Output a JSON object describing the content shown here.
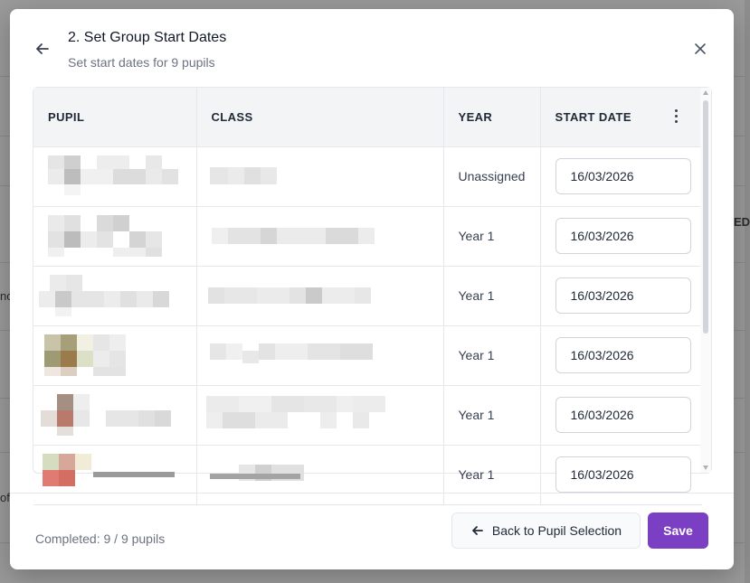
{
  "background": {
    "fragments": [
      "ED",
      "no",
      "of"
    ]
  },
  "modal": {
    "title": "2. Set Group Start Dates",
    "subtitle": "Set start dates for 9 pupils",
    "back_icon": "arrow-left-icon",
    "close_icon": "close-icon"
  },
  "table": {
    "headers": [
      "PUPIL",
      "CLASS",
      "YEAR",
      "START DATE"
    ],
    "rows": [
      {
        "pupil": "",
        "class": "",
        "year": "Unassigned",
        "start_date": "16/03/2026"
      },
      {
        "pupil": "",
        "class": "",
        "year": "Year 1",
        "start_date": "16/03/2026"
      },
      {
        "pupil": "",
        "class": "",
        "year": "Year 1",
        "start_date": "16/03/2026"
      },
      {
        "pupil": "",
        "class": "",
        "year": "Year 1",
        "start_date": "16/03/2026"
      },
      {
        "pupil": "",
        "class": "",
        "year": "Year 1",
        "start_date": "16/03/2026"
      },
      {
        "pupil": "",
        "class": "",
        "year": "Year 1",
        "start_date": "16/03/2026"
      }
    ]
  },
  "footer": {
    "completed": "Completed: 9 / 9 pupils",
    "back_label": "Back to Pupil Selection",
    "save_label": "Save"
  },
  "colors": {
    "accent": "#7b3fc4",
    "header_bg": "#f3f4f6",
    "border": "#e5e7eb"
  }
}
